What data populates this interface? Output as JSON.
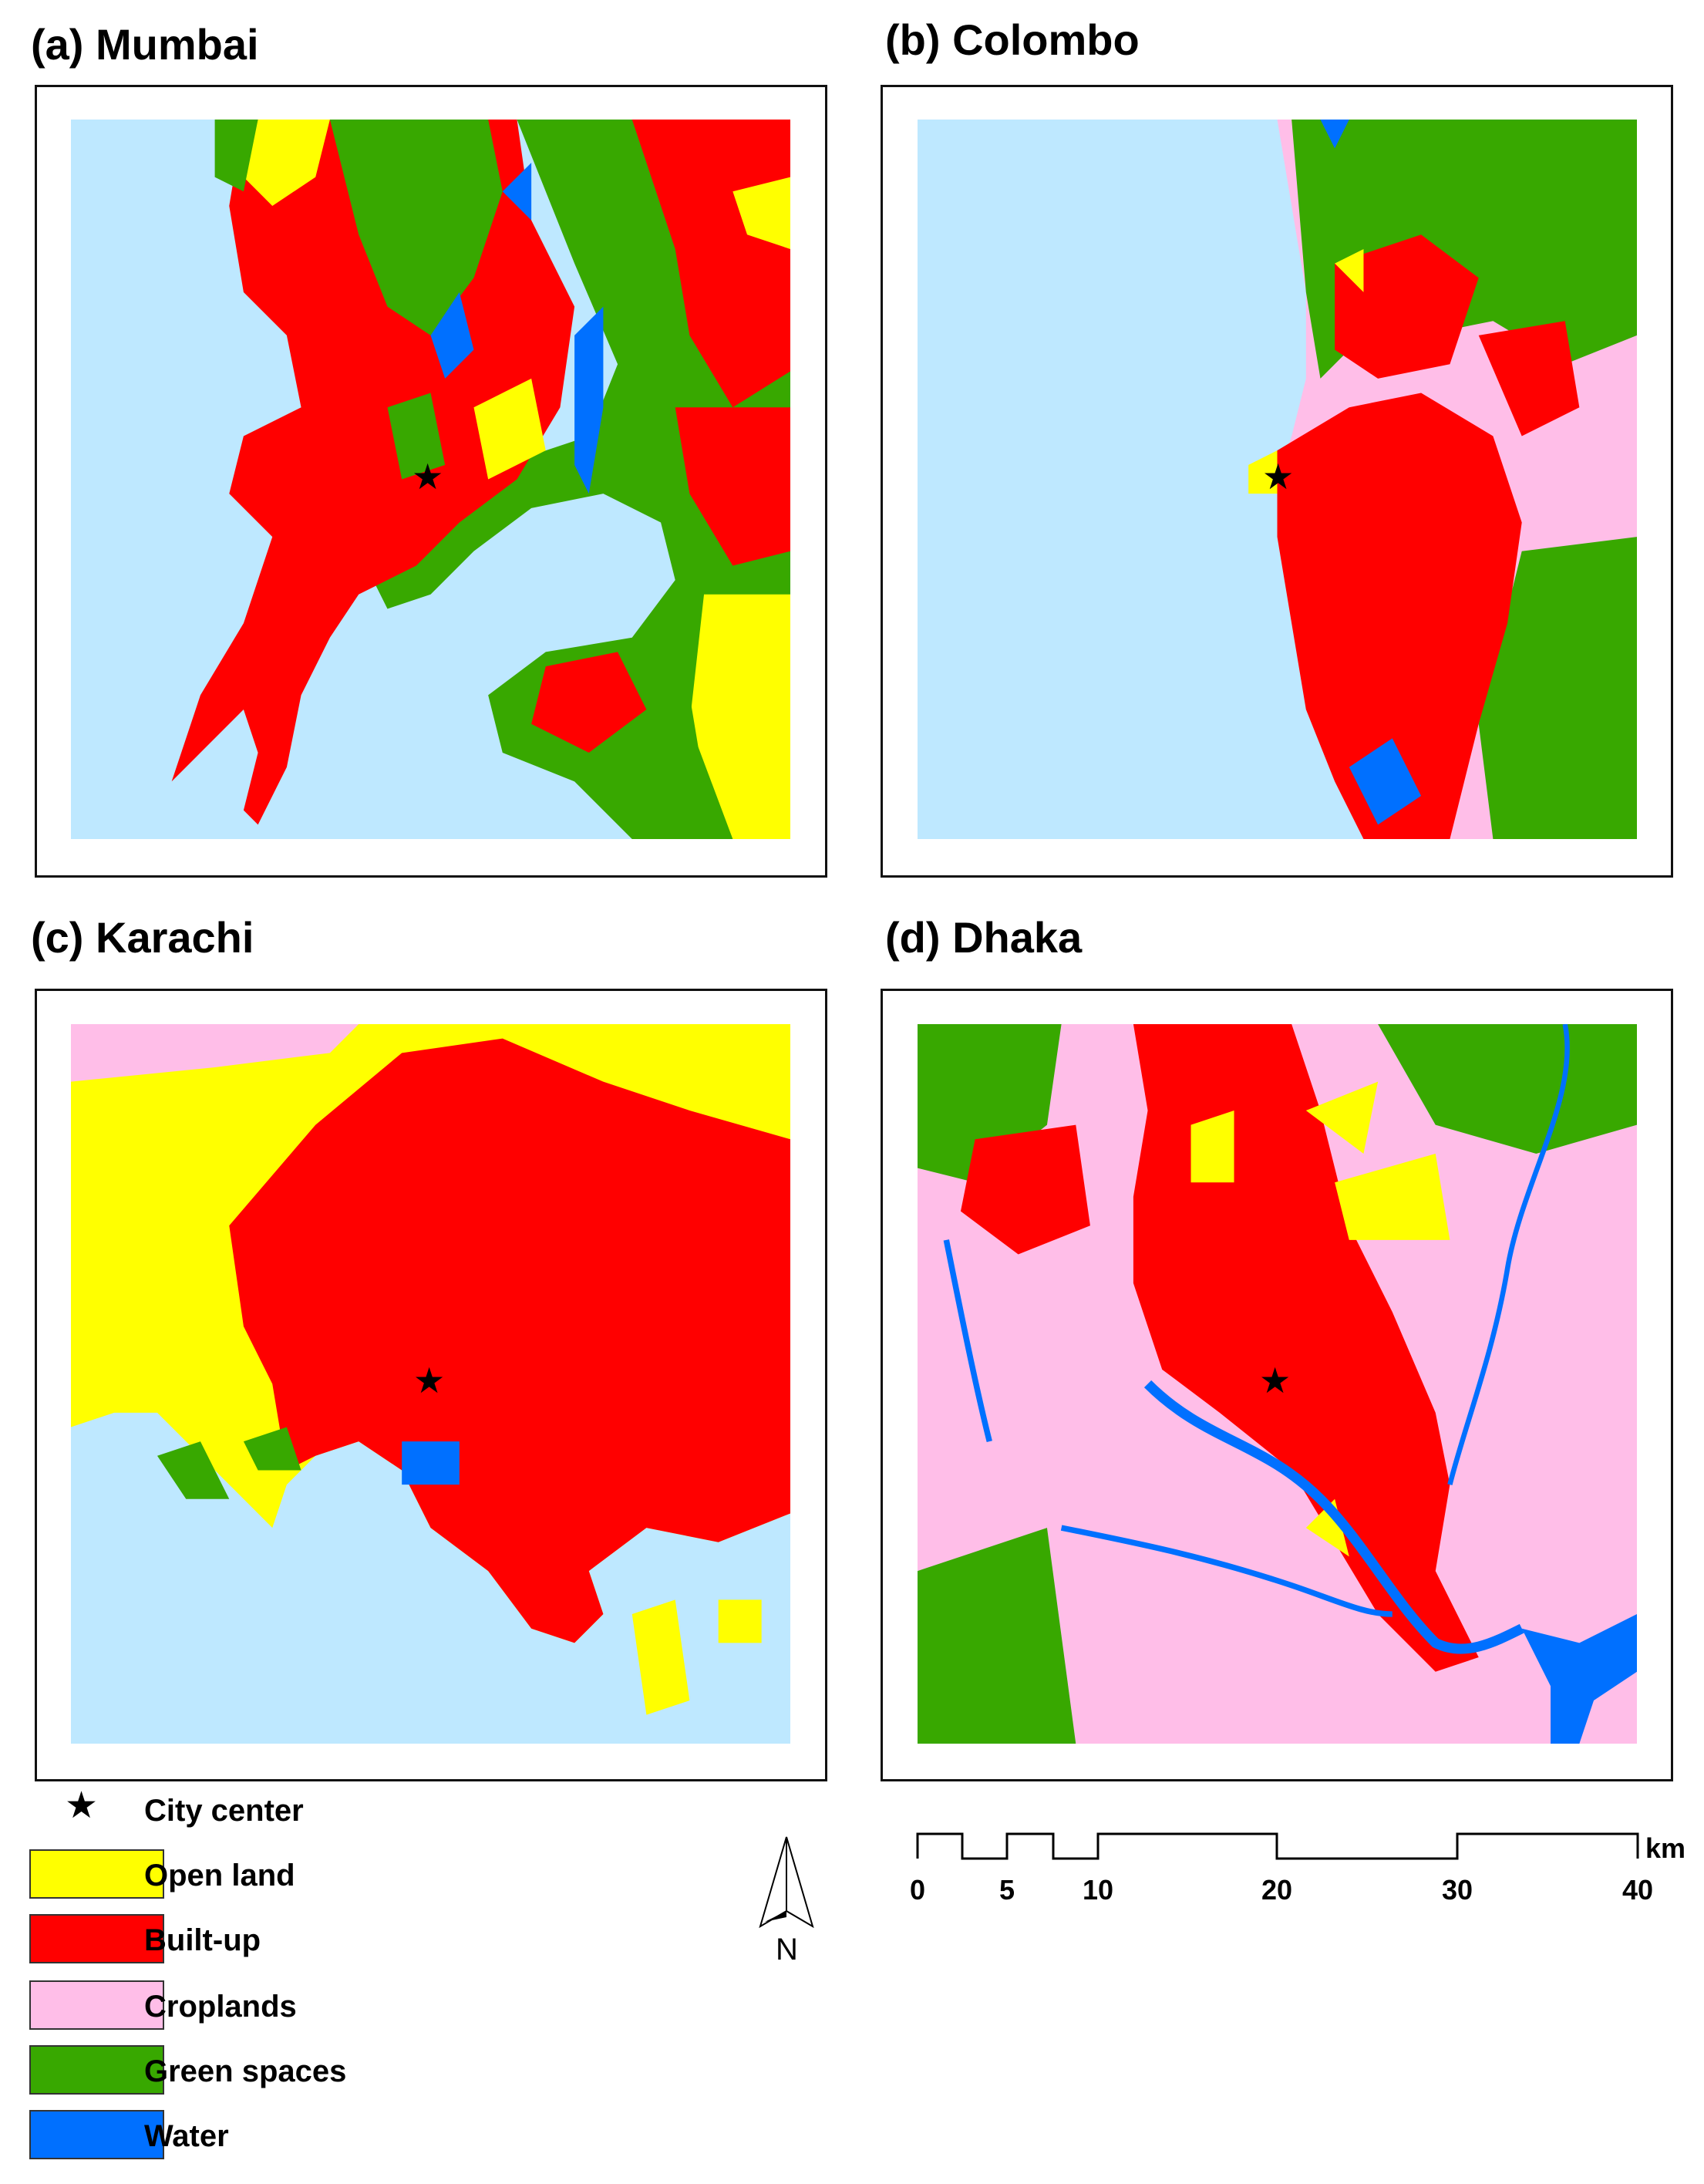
{
  "panels": [
    {
      "title": "(a) Mumbai"
    },
    {
      "title": "(b) Colombo"
    },
    {
      "title": "(c) Karachi"
    },
    {
      "title": "(d) Dhaka"
    }
  ],
  "legend": {
    "city_center": "City center",
    "items": [
      {
        "label": "Open land",
        "color": "#ffff00"
      },
      {
        "label": "Built-up",
        "color": "#ff0000"
      },
      {
        "label": "Croplands",
        "color": "#ffbee8"
      },
      {
        "label": "Green spaces",
        "color": "#38a800"
      },
      {
        "label": "Water",
        "color": "#0070ff"
      }
    ],
    "sea_color": "#bee8ff"
  },
  "north_arrow": {
    "label": "N"
  },
  "scale_bar": {
    "unit": "km",
    "ticks": [
      "0",
      "5",
      "10",
      "20",
      "30",
      "40"
    ]
  }
}
